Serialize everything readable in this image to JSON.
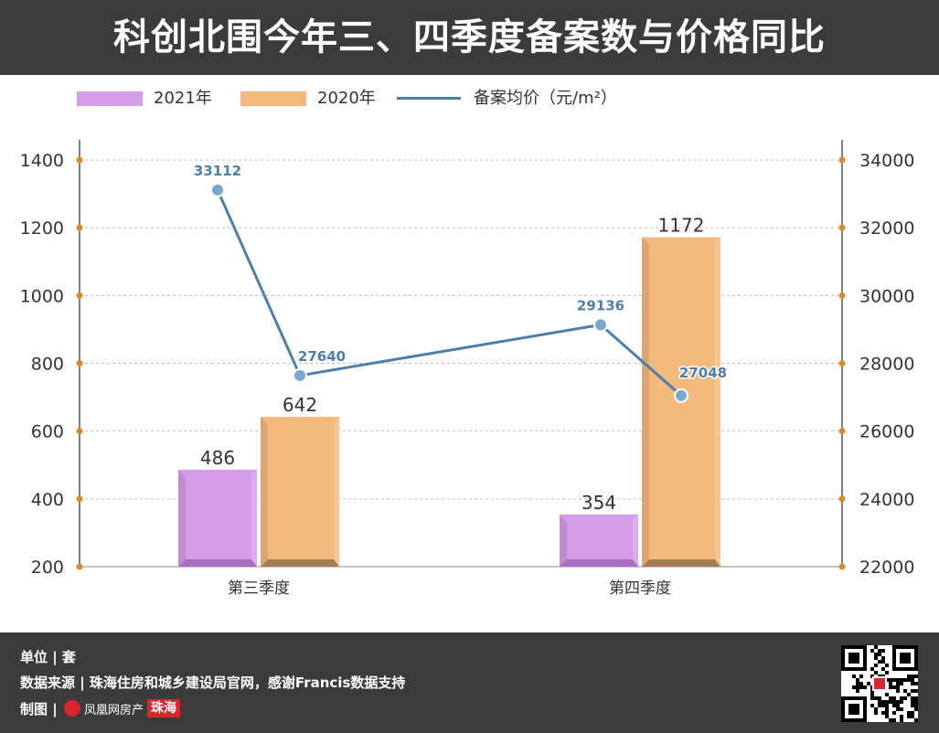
{
  "title": "科创北围今年三、四季度备案数与价格同比",
  "legend": {
    "s2021": "2021年",
    "s2020": "2020年",
    "price": "备案均价（元/m²）"
  },
  "colors": {
    "bar2021": "#d59ce8",
    "bar2020": "#f4b97c",
    "line": "#4f7ea8",
    "axisDot": "#d98a2b"
  },
  "chart_data": {
    "type": "bar",
    "categories": [
      "第三季度",
      "第四季度"
    ],
    "series": [
      {
        "name": "2021年",
        "values": [
          486,
          354
        ]
      },
      {
        "name": "2020年",
        "values": [
          642,
          1172
        ]
      }
    ],
    "line_series": {
      "name": "备案均价（元/m²）",
      "points": [
        {
          "category": "第三季度",
          "value": 33112
        },
        {
          "category": "第三季度",
          "value": 27640
        },
        {
          "category": "第四季度",
          "value": 29136
        },
        {
          "category": "第四季度",
          "value": 27048
        }
      ]
    },
    "ylim": [
      200,
      1400
    ],
    "yticks": [
      200,
      400,
      600,
      800,
      1000,
      1200,
      1400
    ],
    "y2lim": [
      22000,
      34000
    ],
    "y2ticks": [
      22000,
      24000,
      26000,
      28000,
      30000,
      32000,
      34000
    ],
    "grid": true,
    "legend_position": "top"
  },
  "footer": {
    "unit": "单位 | 套",
    "source": "数据来源 | 珠海住房和城乡建设局官网，感谢Francis数据支持",
    "maker": "制图 |",
    "logo_text": "凤凰网房产",
    "logo_badge": "珠海"
  }
}
